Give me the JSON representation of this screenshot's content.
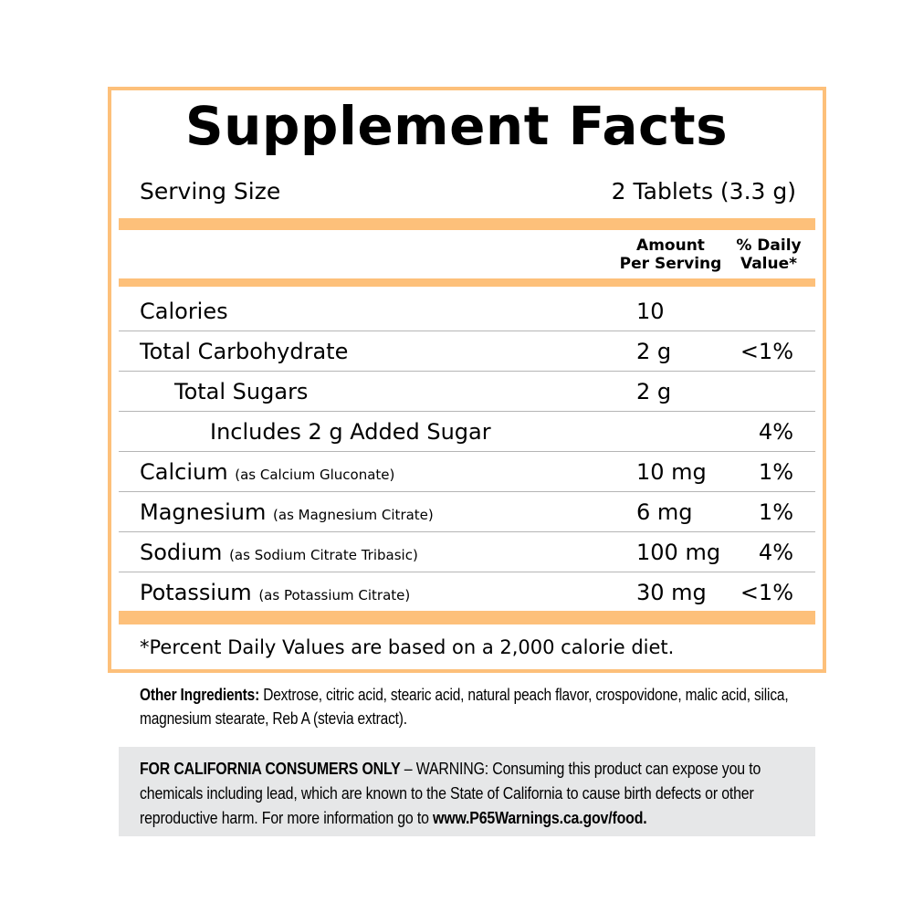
{
  "title": "Supplement Facts",
  "serving_size_label": "Serving Size",
  "serving_size_value": "2 Tablets (3.3 g)",
  "header": {
    "amount_line1": "Amount",
    "amount_line2": "Per Serving",
    "dv_line1": "% Daily",
    "dv_line2": "Value*"
  },
  "rows": [
    {
      "name": "Calories",
      "source": "",
      "amount": "10",
      "dv": ""
    },
    {
      "name": "Total Carbohydrate",
      "source": "",
      "amount": "2 g",
      "dv": "<1%"
    },
    {
      "name": "Total Sugars",
      "source": "",
      "amount": "2 g",
      "dv": ""
    },
    {
      "name": "Includes 2 g Added Sugar",
      "source": "",
      "amount": "",
      "dv": "4%"
    },
    {
      "name": "Calcium",
      "source": "(as Calcium Gluconate)",
      "amount": "10 mg",
      "dv": "1%"
    },
    {
      "name": "Magnesium",
      "source": "(as Magnesium Citrate)",
      "amount": "6 mg",
      "dv": "1%"
    },
    {
      "name": "Sodium",
      "source": "(as Sodium Citrate Tribasic)",
      "amount": "100 mg",
      "dv": "4%"
    },
    {
      "name": "Potassium",
      "source": "(as Potassium Citrate)",
      "amount": "30 mg",
      "dv": "<1%"
    }
  ],
  "footnote": "*Percent Daily Values are based on a 2,000 calorie diet.",
  "ingredients": {
    "label": "Other Ingredients:",
    "text": " Dextrose, citric acid, stearic acid, natural peach flavor, crospovidone, malic acid, silica, magnesium stearate, Reb A (stevia extract)."
  },
  "warning": {
    "label": "FOR CALIFORNIA CONSUMERS ONLY",
    "text": " – WARNING: Consuming this product can expose you to chemicals including lead, which are known to the State of California to cause birth defects or other reproductive harm. For more information go to ",
    "link": "www.P65Warnings.ca.gov/food."
  },
  "colors": {
    "accent": "#fdc07a",
    "warning_bg": "#e6e7e8"
  }
}
